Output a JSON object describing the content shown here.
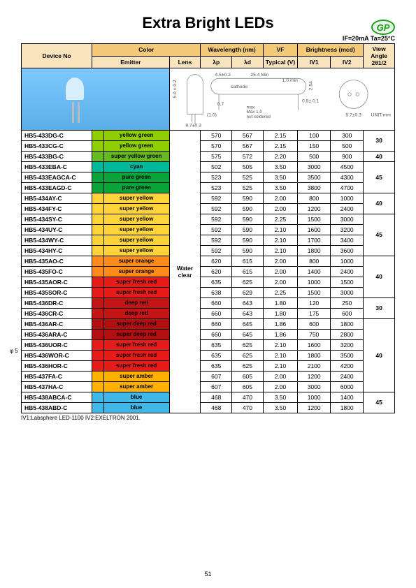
{
  "title": "Extra Bright LEDs",
  "logo_text": "GP",
  "conditions": "IF=20mA Ta=25°C",
  "headers": {
    "device": "Device No",
    "color": "Color",
    "emitter": "Emitter",
    "lens": "Lens",
    "wavelength": "Wavelength (nm)",
    "lp": "λp",
    "ld": "λd",
    "vf": "VF",
    "vf_sub": "Typical (V)",
    "brightness": "Brightness (mcd)",
    "iv1": "IV1",
    "iv2": "IV2",
    "view": "View Angle 2θ1/2"
  },
  "lens_value": "Water clear",
  "diagram_labels": {
    "w1": "4.5±0.2",
    "w2": "25.4 Min",
    "w3": "1.0 min",
    "cathode": "cathode",
    "d1": "5.0 ± 0.2",
    "d2": "8.7±0.3",
    "d3": "0.5± 0.1",
    "d4": "0.7",
    "d5": "(1.0)",
    "d6": "2.54",
    "d7": "5.7±0.3",
    "note": "max\nMax 1.0\nnot soldered",
    "unit": "UNIT:mm"
  },
  "colors": {
    "yellow_green": "#8fce00",
    "super_yellow_green": "#66b821",
    "cyan": "#00b89a",
    "pure_green": "#0aa43a",
    "super_yellow": "#ffd43b",
    "super_orange": "#ff8c1a",
    "super_fresh_red": "#e81b1b",
    "deep_red": "#c41515",
    "super_deep_red": "#b21010",
    "super_amber": "#ffb000",
    "blue": "#3fb8e8"
  },
  "rows": [
    {
      "dev": "HB5-433DG-C",
      "c": "yellow_green",
      "em": "yellow green",
      "lp": "570",
      "ld": "567",
      "vf": "2.15",
      "iv1": "100",
      "iv2": "300",
      "va": "30",
      "vaspan": 2
    },
    {
      "dev": "HB5-433CG-C",
      "c": "yellow_green",
      "em": "yellow green",
      "lp": "570",
      "ld": "567",
      "vf": "2.15",
      "iv1": "150",
      "iv2": "500"
    },
    {
      "dev": "HB5-433BG-C",
      "c": "super_yellow_green",
      "em": "super yellow green",
      "lp": "575",
      "ld": "572",
      "vf": "2.20",
      "iv1": "500",
      "iv2": "900",
      "va": "40",
      "vaspan": 1
    },
    {
      "dev": "HB5-433EBA-C",
      "c": "cyan",
      "em": "cyan",
      "lp": "502",
      "ld": "505",
      "vf": "3.50",
      "iv1": "3000",
      "iv2": "4500",
      "va": "45",
      "vaspan": 3
    },
    {
      "dev": "HB5-433EAGCA-C",
      "c": "pure_green",
      "em": "pure green",
      "lp": "523",
      "ld": "525",
      "vf": "3.50",
      "iv1": "3500",
      "iv2": "4300"
    },
    {
      "dev": "HB5-433EAGD-C",
      "c": "pure_green",
      "em": "pure green",
      "lp": "523",
      "ld": "525",
      "vf": "3.50",
      "iv1": "3800",
      "iv2": "4700"
    },
    {
      "dev": "HB5-434AY-C",
      "c": "super_yellow",
      "em": "super yellow",
      "lp": "592",
      "ld": "590",
      "vf": "2.00",
      "iv1": "800",
      "iv2": "1000",
      "va": "40",
      "vaspan": 2
    },
    {
      "dev": "HB5-434FY-C",
      "c": "super_yellow",
      "em": "super yellow",
      "lp": "592",
      "ld": "590",
      "vf": "2.00",
      "iv1": "1200",
      "iv2": "2400"
    },
    {
      "dev": "HB5-434SY-C",
      "c": "super_yellow",
      "em": "super yellow",
      "lp": "592",
      "ld": "590",
      "vf": "2.25",
      "iv1": "1500",
      "iv2": "3000",
      "va": "45",
      "vaspan": 4
    },
    {
      "dev": "HB5-434UY-C",
      "c": "super_yellow",
      "em": "super yellow",
      "lp": "592",
      "ld": "590",
      "vf": "2.10",
      "iv1": "1600",
      "iv2": "3200"
    },
    {
      "dev": "HB5-434WY-C",
      "c": "super_yellow",
      "em": "super yellow",
      "lp": "592",
      "ld": "590",
      "vf": "2.10",
      "iv1": "1700",
      "iv2": "3400"
    },
    {
      "dev": "HB5-434HY-C",
      "c": "super_yellow",
      "em": "super yellow",
      "lp": "592",
      "ld": "590",
      "vf": "2.10",
      "iv1": "1800",
      "iv2": "3600"
    },
    {
      "dev": "HB5-435AO-C",
      "c": "super_orange",
      "em": "super orange",
      "lp": "620",
      "ld": "615",
      "vf": "2.00",
      "iv1": "800",
      "iv2": "1000",
      "va": "40",
      "vaspan": 4
    },
    {
      "dev": "HB5-435FO-C",
      "c": "super_orange",
      "em": "super orange",
      "lp": "620",
      "ld": "615",
      "vf": "2.00",
      "iv1": "1400",
      "iv2": "2400"
    },
    {
      "dev": "HB5-435AOR-C",
      "c": "super_fresh_red",
      "em": "super fresh red",
      "lp": "635",
      "ld": "625",
      "vf": "2.00",
      "iv1": "1000",
      "iv2": "1500"
    },
    {
      "dev": "HB5-435SOR-C",
      "c": "super_fresh_red",
      "em": "super fresh red",
      "lp": "638",
      "ld": "629",
      "vf": "2.25",
      "iv1": "1500",
      "iv2": "3000"
    },
    {
      "dev": "HB5-436DR-C",
      "c": "deep_red",
      "em": "deep red",
      "lp": "660",
      "ld": "643",
      "vf": "1.80",
      "iv1": "120",
      "iv2": "250",
      "va": "30",
      "vaspan": 2
    },
    {
      "dev": "HB5-436CR-C",
      "c": "deep_red",
      "em": "deep red",
      "lp": "660",
      "ld": "643",
      "vf": "1.80",
      "iv1": "175",
      "iv2": "600"
    },
    {
      "dev": "HB5-436AR-C",
      "c": "super_deep_red",
      "em": "super deep red",
      "lp": "660",
      "ld": "645",
      "vf": "1.86",
      "iv1": "600",
      "iv2": "1800",
      "va": "40",
      "vaspan": 7
    },
    {
      "dev": "HB5-436ARA-C",
      "c": "super_deep_red",
      "em": "super deep red",
      "lp": "660",
      "ld": "645",
      "vf": "1.86",
      "iv1": "750",
      "iv2": "2800"
    },
    {
      "dev": "HB5-436UOR-C",
      "c": "super_fresh_red",
      "em": "super fresh red",
      "lp": "635",
      "ld": "625",
      "vf": "2.10",
      "iv1": "1600",
      "iv2": "3200"
    },
    {
      "dev": "HB5-436WOR-C",
      "c": "super_fresh_red",
      "em": "super fresh red",
      "lp": "635",
      "ld": "625",
      "vf": "2.10",
      "iv1": "1800",
      "iv2": "3500"
    },
    {
      "dev": "HB5-436HOR-C",
      "c": "super_fresh_red",
      "em": "super fresh red",
      "lp": "635",
      "ld": "625",
      "vf": "2.10",
      "iv1": "2100",
      "iv2": "4200"
    },
    {
      "dev": "HB5-437FA-C",
      "c": "super_amber",
      "em": "super amber",
      "lp": "607",
      "ld": "605",
      "vf": "2.00",
      "iv1": "1200",
      "iv2": "2400"
    },
    {
      "dev": "HB5-437HA-C",
      "c": "super_amber",
      "em": "super amber",
      "lp": "607",
      "ld": "605",
      "vf": "2.00",
      "iv1": "3000",
      "iv2": "6000"
    },
    {
      "dev": "HB5-438ABCA-C",
      "c": "blue",
      "em": "blue",
      "lp": "468",
      "ld": "470",
      "vf": "3.50",
      "iv1": "1000",
      "iv2": "1400",
      "va": "45",
      "vaspan": 2
    },
    {
      "dev": "HB5-438ABD-C",
      "c": "blue",
      "em": "blue",
      "lp": "468",
      "ld": "470",
      "vf": "3.50",
      "iv1": "1200",
      "iv2": "1800"
    }
  ],
  "footnote": "IV1:Labsphere LED-1100   IV2:EXELTRON 2001.",
  "revmark": "φ\n5",
  "page": "51"
}
